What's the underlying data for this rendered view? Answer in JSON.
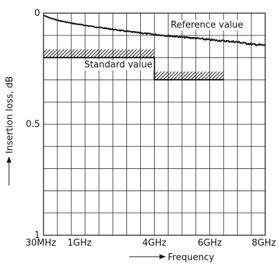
{
  "chart_data": {
    "type": "line",
    "title": "",
    "xlabel": "Frequency",
    "ylabel": "Insertion loss, dB",
    "xlim": [
      0,
      8
    ],
    "ylim": [
      0,
      1
    ],
    "y_inverted": true,
    "x_ticks": [
      {
        "value": 0,
        "label": "30MHz"
      },
      {
        "value": 1,
        "label": "1GHz"
      },
      {
        "value": 4,
        "label": "4GHz"
      },
      {
        "value": 6,
        "label": "6GHz"
      },
      {
        "value": 8,
        "label": "8GHz"
      }
    ],
    "y_ticks": [
      {
        "value": 0,
        "label": "0"
      },
      {
        "value": 0.5,
        "label": "0.5"
      },
      {
        "value": 1,
        "label": "1"
      }
    ],
    "grid": true,
    "series": [
      {
        "name": "Reference value",
        "style": "noisy-line",
        "x": [
          0,
          0.2,
          0.5,
          1.0,
          1.5,
          2.0,
          2.5,
          3.0,
          3.5,
          4.0,
          4.5,
          5.0,
          5.5,
          6.0,
          6.5,
          7.0,
          7.5,
          8.0
        ],
        "y": [
          0.01,
          0.02,
          0.032,
          0.045,
          0.055,
          0.064,
          0.073,
          0.082,
          0.089,
          0.096,
          0.102,
          0.108,
          0.113,
          0.12,
          0.125,
          0.13,
          0.14,
          0.145
        ]
      },
      {
        "name": "Standard value",
        "style": "step-limit",
        "segments": [
          {
            "x0": 0,
            "x1": 4,
            "y": 0.2
          },
          {
            "x0": 4,
            "x1": 6.5,
            "y": 0.3
          }
        ]
      }
    ],
    "annotations": [
      {
        "text": "Reference value",
        "x": 5.9,
        "y": 0.065
      },
      {
        "text": "Standard value",
        "x": 2.7,
        "y": 0.245
      }
    ]
  }
}
